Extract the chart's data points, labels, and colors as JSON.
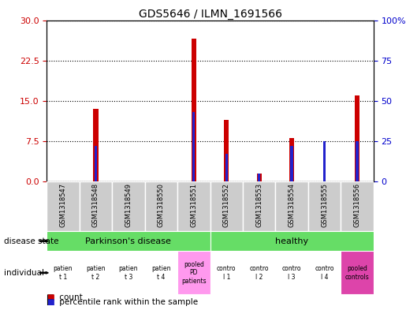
{
  "title": "GDS5646 / ILMN_1691566",
  "samples": [
    "GSM1318547",
    "GSM1318548",
    "GSM1318549",
    "GSM1318550",
    "GSM1318551",
    "GSM1318552",
    "GSM1318553",
    "GSM1318554",
    "GSM1318555",
    "GSM1318556"
  ],
  "counts": [
    0,
    13.5,
    0,
    0,
    26.5,
    11.5,
    1.5,
    8.0,
    0,
    16.0
  ],
  "percentile_ranks": [
    0,
    22,
    0,
    0,
    43,
    17,
    5,
    22,
    25,
    25
  ],
  "ylim_left": [
    0,
    30
  ],
  "ylim_right": [
    0,
    100
  ],
  "yticks_left": [
    0,
    7.5,
    15,
    22.5,
    30
  ],
  "yticks_right": [
    0,
    25,
    50,
    75,
    100
  ],
  "bar_color": "#cc0000",
  "percentile_color": "#2222cc",
  "sample_bg_color": "#cccccc",
  "left_ytick_color": "#cc0000",
  "right_ytick_color": "#0000cc",
  "bar_width": 0.15,
  "pct_bar_width": 0.08,
  "disease_state_color": "#66dd66",
  "individual_pink": "#ff99ee",
  "individual_darkpink": "#dd44aa",
  "legend_items": [
    {
      "color": "#cc0000",
      "label": "count"
    },
    {
      "color": "#2222cc",
      "label": "percentile rank within the sample"
    }
  ],
  "individual_labels": [
    {
      "text": "patien\nt 1",
      "bg": "white"
    },
    {
      "text": "patien\nt 2",
      "bg": "white"
    },
    {
      "text": "patien\nt 3",
      "bg": "white"
    },
    {
      "text": "patien\nt 4",
      "bg": "white"
    },
    {
      "text": "pooled\nPD\npatients",
      "bg": "#ff99ee"
    },
    {
      "text": "contro\nl 1",
      "bg": "white"
    },
    {
      "text": "contro\nl 2",
      "bg": "white"
    },
    {
      "text": "contro\nl 3",
      "bg": "white"
    },
    {
      "text": "contro\nl 4",
      "bg": "white"
    },
    {
      "text": "pooled\ncontrols",
      "bg": "#dd44aa"
    }
  ]
}
